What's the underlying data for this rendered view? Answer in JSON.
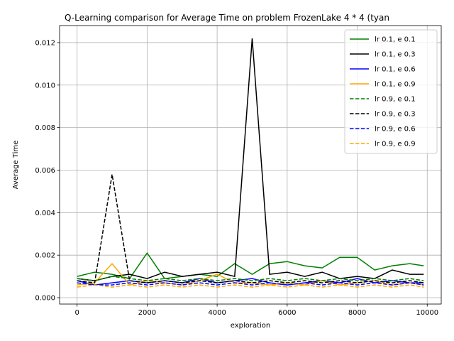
{
  "chart_data": {
    "type": "line",
    "title": "Q-Learning comparison for Average Time on problem FrozenLake 4 * 4 (tyan",
    "xlabel": "exploration",
    "ylabel": "Average Time",
    "xlim": [
      -500,
      10400
    ],
    "ylim": [
      -0.0003,
      0.0128
    ],
    "x_ticks": [
      0,
      2000,
      4000,
      6000,
      8000,
      10000
    ],
    "x_tick_labels": [
      "0",
      "2000",
      "4000",
      "6000",
      "8000",
      "10000"
    ],
    "y_ticks": [
      0.0,
      0.002,
      0.004,
      0.006,
      0.008,
      0.01,
      0.012
    ],
    "y_tick_labels": [
      "0.000",
      "0.002",
      "0.004",
      "0.006",
      "0.008",
      "0.010",
      "0.012"
    ],
    "grid": true,
    "legend_position": "top-right",
    "x": [
      0,
      500,
      1000,
      1500,
      2000,
      2500,
      3000,
      3500,
      4000,
      4500,
      5000,
      5500,
      6000,
      6500,
      7000,
      7500,
      8000,
      8500,
      9000,
      9500,
      9900
    ],
    "series": [
      {
        "name": "lr 0.1, e 0.1",
        "color": "#008000",
        "dash": "solid",
        "values": [
          0.001,
          0.0012,
          0.0011,
          0.0009,
          0.0021,
          0.0009,
          0.001,
          0.0011,
          0.001,
          0.0016,
          0.0011,
          0.0016,
          0.0017,
          0.0015,
          0.0014,
          0.0019,
          0.0019,
          0.0013,
          0.0015,
          0.0016,
          0.0015
        ]
      },
      {
        "name": "lr 0.1, e 0.3",
        "color": "#000000",
        "dash": "solid",
        "values": [
          0.0009,
          0.0008,
          0.001,
          0.0011,
          0.0009,
          0.0012,
          0.001,
          0.0011,
          0.0012,
          0.001,
          0.0122,
          0.0011,
          0.0012,
          0.001,
          0.0012,
          0.0009,
          0.001,
          0.0009,
          0.0013,
          0.0011,
          0.0011
        ]
      },
      {
        "name": "lr 0.1, e 0.6",
        "color": "#0000ff",
        "dash": "solid",
        "values": [
          0.0008,
          0.0006,
          0.0007,
          0.0008,
          0.0007,
          0.0008,
          0.0007,
          0.0009,
          0.0007,
          0.0008,
          0.0009,
          0.0007,
          0.0006,
          0.0007,
          0.0008,
          0.0007,
          0.0009,
          0.0007,
          0.0008,
          0.0007,
          0.0007
        ]
      },
      {
        "name": "lr 0.1, e 0.9",
        "color": "#ffa500",
        "dash": "solid",
        "values": [
          0.0006,
          0.0007,
          0.0016,
          0.0006,
          0.0008,
          0.0007,
          0.0006,
          0.0008,
          0.0011,
          0.0007,
          0.0007,
          0.0006,
          0.0007,
          0.0006,
          0.0008,
          0.0006,
          0.0007,
          0.0008,
          0.0006,
          0.0007,
          0.0006
        ]
      },
      {
        "name": "lr 0.9, e 0.1",
        "color": "#008000",
        "dash": "dashed",
        "values": [
          0.0009,
          0.0008,
          0.001,
          0.0009,
          0.0008,
          0.0009,
          0.0008,
          0.0009,
          0.0008,
          0.0009,
          0.0008,
          0.0009,
          0.0008,
          0.0009,
          0.0008,
          0.0009,
          0.0008,
          0.0009,
          0.0008,
          0.0009,
          0.0008
        ]
      },
      {
        "name": "lr 0.9, e 0.3",
        "color": "#000000",
        "dash": "dashed",
        "values": [
          0.0008,
          0.0007,
          0.0058,
          0.0008,
          0.0007,
          0.0008,
          0.0007,
          0.0008,
          0.0007,
          0.0008,
          0.0007,
          0.0008,
          0.0007,
          0.0008,
          0.0007,
          0.0008,
          0.0007,
          0.0008,
          0.0007,
          0.0008,
          0.0007
        ]
      },
      {
        "name": "lr 0.9, e 0.6",
        "color": "#0000ff",
        "dash": "dashed",
        "values": [
          0.0007,
          0.0006,
          0.0006,
          0.0007,
          0.0006,
          0.0007,
          0.0006,
          0.0007,
          0.0006,
          0.0007,
          0.0006,
          0.0007,
          0.0006,
          0.0007,
          0.0006,
          0.0007,
          0.0006,
          0.0007,
          0.0006,
          0.0007,
          0.0006
        ]
      },
      {
        "name": "lr 0.9, e 0.9",
        "color": "#ffa500",
        "dash": "dashed",
        "values": [
          0.0005,
          0.0006,
          0.0005,
          0.0006,
          0.0005,
          0.0006,
          0.0005,
          0.0006,
          0.0005,
          0.0006,
          0.0005,
          0.0006,
          0.0005,
          0.0006,
          0.0005,
          0.0006,
          0.0005,
          0.0006,
          0.0005,
          0.0006,
          0.0005
        ]
      }
    ]
  }
}
